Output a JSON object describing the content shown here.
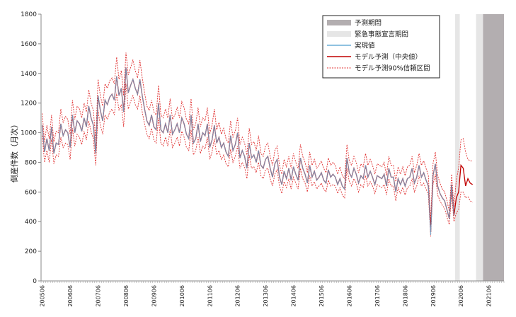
{
  "chart_data": {
    "type": "line",
    "xlabel": "",
    "ylabel": "倒産件数（月次）",
    "ylim": [
      0,
      1800
    ],
    "yticks": [
      0,
      200,
      400,
      600,
      800,
      1000,
      1200,
      1400,
      1600,
      1800
    ],
    "grid": false,
    "legend_position": "top-right",
    "colors": {
      "forecast_period": "#b3aeb0",
      "emergency_period": "#e6e6e6",
      "actual": "#6aaed6",
      "median": "#c00000",
      "interval": "#e03030"
    },
    "x_tick_labels": [
      "200506",
      "200606",
      "200706",
      "200806",
      "200906",
      "201006",
      "201106",
      "201206",
      "201306",
      "201406",
      "201506",
      "201606",
      "201706",
      "201806",
      "201906",
      "202006",
      "202106"
    ],
    "start_month": "2005-06",
    "shaded_periods": [
      {
        "name": "緊急事態宣言期間",
        "start": "2020-04",
        "end": "2020-05"
      },
      {
        "name": "緊急事態宣言期間",
        "start": "2021-01",
        "end": "2021-03"
      },
      {
        "name": "予測期間",
        "start": "2021-04",
        "end": "2021-12"
      }
    ],
    "legend": [
      {
        "label": "予測期間",
        "style": "forecast-box"
      },
      {
        "label": "緊急事態宣言期間",
        "style": "emergency-box"
      },
      {
        "label": "実現値",
        "style": "actual-line"
      },
      {
        "label": "モデル予測（中央値）",
        "style": "median-line"
      },
      {
        "label": "モデル予測90%信頼区間",
        "style": "interval-dotted"
      }
    ],
    "series": [
      {
        "name": "実現値",
        "values": [
          1050,
          870,
          960,
          880,
          1040,
          860,
          930,
          920,
          1060,
          980,
          1020,
          1000,
          900,
          1120,
          1000,
          1080,
          1060,
          1010,
          1100,
          1040,
          1180,
          1100,
          1050,
          860,
          1250,
          1150,
          1080,
          1220,
          1190,
          1240,
          1260,
          1220,
          1380,
          1250,
          1300,
          1140,
          1440,
          1270,
          1320,
          1360,
          1300,
          1260,
          1360,
          1250,
          1160,
          1080,
          1050,
          1120,
          1040,
          1020,
          1200,
          1020,
          1000,
          1060,
          1000,
          1120,
          990,
          1020,
          1060,
          1000,
          1100,
          1060,
          990,
          960,
          1120,
          930,
          960,
          1060,
          940,
          1000,
          980,
          1060,
          900,
          950,
          1050,
          930,
          970,
          900,
          930,
          870,
          840,
          980,
          880,
          920,
          1000,
          830,
          880,
          840,
          760,
          930,
          830,
          850,
          800,
          880,
          780,
          760,
          820,
          840,
          760,
          700,
          790,
          820,
          700,
          650,
          740,
          690,
          760,
          680,
          770,
          720,
          680,
          830,
          760,
          720,
          660,
          780,
          700,
          740,
          680,
          700,
          730,
          680,
          660,
          750,
          700,
          720,
          700,
          650,
          690,
          640,
          620,
          830,
          730,
          700,
          760,
          720,
          660,
          710,
          690,
          780,
          700,
          740,
          700,
          650,
          710,
          700,
          690,
          720,
          640,
          760,
          700,
          700,
          600,
          690,
          650,
          690,
          640,
          690,
          700,
          760,
          660,
          700,
          780,
          700,
          730,
          680,
          640,
          310,
          710,
          790,
          640,
          590,
          560,
          540,
          480,
          420,
          650,
          440
        ],
        "values_note": "monthly from 2005-06"
      },
      {
        "name": "モデル予測（中央値）",
        "values": [
          1050,
          870,
          960,
          880,
          1040,
          860,
          930,
          920,
          1060,
          980,
          1020,
          1000,
          900,
          1120,
          1000,
          1080,
          1060,
          1010,
          1100,
          1040,
          1180,
          1100,
          1050,
          860,
          1250,
          1150,
          1080,
          1220,
          1190,
          1240,
          1260,
          1220,
          1380,
          1250,
          1300,
          1140,
          1440,
          1270,
          1320,
          1360,
          1300,
          1260,
          1360,
          1250,
          1160,
          1080,
          1050,
          1120,
          1040,
          1020,
          1200,
          1020,
          1000,
          1060,
          1000,
          1120,
          990,
          1020,
          1060,
          1000,
          1100,
          1060,
          990,
          960,
          1120,
          930,
          960,
          1060,
          940,
          1000,
          980,
          1060,
          900,
          950,
          1050,
          930,
          970,
          900,
          930,
          870,
          840,
          980,
          880,
          920,
          1000,
          830,
          880,
          840,
          760,
          930,
          830,
          850,
          800,
          880,
          780,
          760,
          820,
          840,
          760,
          700,
          790,
          820,
          700,
          650,
          740,
          690,
          760,
          680,
          770,
          720,
          680,
          830,
          760,
          720,
          660,
          780,
          700,
          740,
          680,
          700,
          730,
          680,
          660,
          750,
          700,
          720,
          700,
          650,
          690,
          640,
          620,
          830,
          730,
          700,
          760,
          720,
          660,
          710,
          690,
          780,
          700,
          740,
          700,
          650,
          710,
          700,
          690,
          720,
          640,
          760,
          700,
          700,
          600,
          690,
          650,
          690,
          640,
          690,
          700,
          760,
          660,
          700,
          780,
          700,
          730,
          680,
          640,
          330,
          710,
          790,
          640,
          590,
          560,
          540,
          480,
          420,
          650,
          440,
          560,
          600,
          780,
          760,
          640,
          690,
          660,
          650
        ],
        "values_note": "monthly from 2005-06; includes forecast through 2021-12"
      },
      {
        "name": "モデル予測90%信頼区間",
        "upper": [
          1130,
          940,
          1050,
          960,
          1120,
          940,
          1010,
          1000,
          1160,
          1070,
          1110,
          1090,
          990,
          1220,
          1090,
          1180,
          1160,
          1100,
          1200,
          1140,
          1290,
          1200,
          1150,
          950,
          1360,
          1250,
          1180,
          1330,
          1300,
          1350,
          1370,
          1330,
          1510,
          1360,
          1420,
          1250,
          1540,
          1390,
          1440,
          1490,
          1420,
          1370,
          1490,
          1370,
          1270,
          1180,
          1150,
          1220,
          1140,
          1120,
          1320,
          1120,
          1100,
          1160,
          1100,
          1230,
          1090,
          1120,
          1170,
          1100,
          1210,
          1170,
          1090,
          1060,
          1230,
          1020,
          1060,
          1170,
          1040,
          1100,
          1080,
          1170,
          990,
          1050,
          1160,
          1020,
          1070,
          990,
          1030,
          960,
          930,
          1080,
          970,
          1010,
          1100,
          920,
          970,
          930,
          850,
          1030,
          920,
          940,
          880,
          980,
          860,
          840,
          910,
          930,
          840,
          780,
          880,
          910,
          780,
          720,
          820,
          770,
          840,
          760,
          860,
          800,
          760,
          920,
          840,
          800,
          730,
          870,
          780,
          820,
          760,
          780,
          810,
          760,
          730,
          830,
          780,
          800,
          780,
          720,
          770,
          710,
          690,
          920,
          810,
          780,
          840,
          800,
          730,
          790,
          770,
          860,
          780,
          820,
          780,
          720,
          790,
          780,
          770,
          800,
          710,
          840,
          780,
          780,
          670,
          770,
          720,
          770,
          710,
          770,
          780,
          840,
          730,
          780,
          860,
          780,
          810,
          760,
          710,
          400,
          790,
          870,
          710,
          660,
          620,
          600,
          540,
          470,
          720,
          500,
          680,
          760,
          950,
          960,
          870,
          820,
          810,
          810
        ],
        "lower": [
          980,
          800,
          880,
          800,
          960,
          790,
          850,
          840,
          970,
          900,
          930,
          920,
          820,
          1030,
          910,
          990,
          970,
          920,
          1010,
          950,
          1080,
          1010,
          960,
          780,
          1150,
          1050,
          990,
          1120,
          1090,
          1140,
          1160,
          1120,
          1270,
          1150,
          1190,
          1040,
          1330,
          1160,
          1210,
          1250,
          1190,
          1160,
          1250,
          1140,
          1060,
          990,
          960,
          1030,
          950,
          930,
          1100,
          930,
          910,
          970,
          910,
          1020,
          900,
          930,
          970,
          910,
          1010,
          970,
          900,
          880,
          1020,
          850,
          880,
          970,
          860,
          910,
          890,
          970,
          820,
          870,
          960,
          850,
          880,
          820,
          850,
          790,
          770,
          890,
          800,
          840,
          910,
          760,
          800,
          770,
          690,
          850,
          760,
          770,
          730,
          800,
          710,
          690,
          750,
          760,
          690,
          640,
          720,
          750,
          640,
          590,
          670,
          630,
          690,
          620,
          700,
          660,
          620,
          760,
          690,
          660,
          600,
          710,
          640,
          670,
          620,
          640,
          660,
          620,
          600,
          680,
          640,
          650,
          640,
          590,
          630,
          580,
          560,
          760,
          670,
          640,
          690,
          660,
          600,
          650,
          630,
          710,
          640,
          670,
          640,
          590,
          650,
          640,
          630,
          650,
          580,
          690,
          640,
          640,
          540,
          630,
          590,
          630,
          580,
          630,
          640,
          690,
          600,
          640,
          710,
          640,
          660,
          620,
          580,
          300,
          650,
          720,
          580,
          540,
          510,
          490,
          430,
          380,
          590,
          400,
          460,
          480,
          600,
          600,
          560,
          570,
          540,
          530
        ]
      }
    ]
  }
}
